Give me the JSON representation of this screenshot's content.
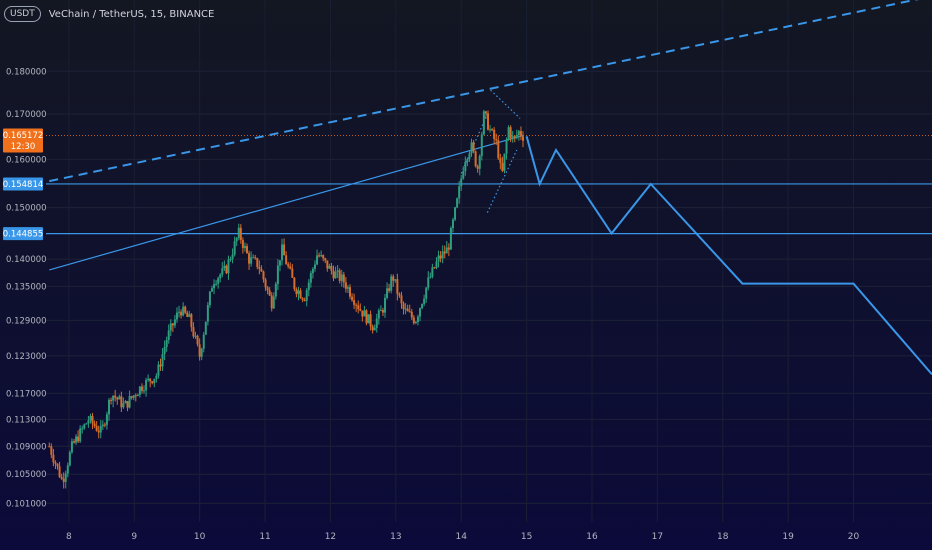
{
  "header": {
    "currency_badge": "USDT",
    "title": "VeChain / TetherUS, 15, BINANCE"
  },
  "colors": {
    "background_top": "#131722",
    "background_bottom": "#0b0a3a",
    "up_candle": "#2e9e7f",
    "down_candle": "#d86d2a",
    "drawing_blue": "#3a96e8",
    "price_tag": "#f0701b",
    "axis_text": "#b2b5be"
  },
  "price_tags": [
    {
      "price": 0.165172,
      "label": "0.165172",
      "sub": "12:30",
      "color": "#f0701b"
    },
    {
      "price": 0.154814,
      "label": "0.154814",
      "color": "#3a96e8"
    },
    {
      "price": 0.144855,
      "label": "0.144855",
      "color": "#3a96e8"
    }
  ],
  "chart_data": {
    "type": "candlestick",
    "y_scale": "log",
    "x_range": [
      7.65,
      21.2
    ],
    "y_range": [
      0.0985,
      0.198
    ],
    "x_ticks": [
      "8",
      "9",
      "10",
      "11",
      "12",
      "13",
      "14",
      "15",
      "16",
      "17",
      "18",
      "19",
      "20"
    ],
    "y_ticks": [
      "0.180000",
      "0.170000",
      "0.160000",
      "0.150000",
      "0.140000",
      "0.135000",
      "0.129000",
      "0.123000",
      "0.117000",
      "0.113000",
      "0.109000",
      "0.105000",
      "0.101000"
    ],
    "price_path": [
      [
        7.7,
        0.109
      ],
      [
        7.9,
        0.104
      ],
      [
        8.05,
        0.109
      ],
      [
        8.3,
        0.113
      ],
      [
        8.5,
        0.111
      ],
      [
        8.65,
        0.117
      ],
      [
        8.85,
        0.115
      ],
      [
        9.1,
        0.118
      ],
      [
        9.35,
        0.12
      ],
      [
        9.5,
        0.126
      ],
      [
        9.7,
        0.131
      ],
      [
        9.85,
        0.129
      ],
      [
        10.0,
        0.123
      ],
      [
        10.2,
        0.136
      ],
      [
        10.4,
        0.138
      ],
      [
        10.6,
        0.145
      ],
      [
        10.75,
        0.14
      ],
      [
        10.9,
        0.139
      ],
      [
        11.1,
        0.132
      ],
      [
        11.25,
        0.142
      ],
      [
        11.45,
        0.135
      ],
      [
        11.6,
        0.133
      ],
      [
        11.8,
        0.141
      ],
      [
        12.0,
        0.138
      ],
      [
        12.2,
        0.136
      ],
      [
        12.45,
        0.131
      ],
      [
        12.65,
        0.128
      ],
      [
        12.8,
        0.131
      ],
      [
        12.95,
        0.137
      ],
      [
        13.1,
        0.131
      ],
      [
        13.3,
        0.129
      ],
      [
        13.5,
        0.136
      ],
      [
        13.65,
        0.14
      ],
      [
        13.8,
        0.142
      ],
      [
        13.95,
        0.152
      ],
      [
        14.05,
        0.16
      ],
      [
        14.15,
        0.163
      ],
      [
        14.25,
        0.158
      ],
      [
        14.35,
        0.17
      ],
      [
        14.45,
        0.166
      ],
      [
        14.55,
        0.163
      ],
      [
        14.62,
        0.156
      ],
      [
        14.72,
        0.167
      ],
      [
        14.8,
        0.164
      ],
      [
        14.88,
        0.166
      ],
      [
        14.95,
        0.165
      ]
    ],
    "projection": [
      [
        15.0,
        0.165
      ],
      [
        15.2,
        0.1548
      ],
      [
        15.45,
        0.162
      ],
      [
        16.3,
        0.1449
      ],
      [
        16.9,
        0.1548
      ],
      [
        18.3,
        0.1355
      ],
      [
        20.0,
        0.1355
      ],
      [
        21.2,
        0.12
      ]
    ],
    "horizontal_lines": [
      0.154814,
      0.144855
    ],
    "current_price_line": 0.165172,
    "trendlines": [
      {
        "style": "dashed",
        "from": [
          7.7,
          0.1554
        ],
        "to": [
          21.2,
          0.199
        ]
      },
      {
        "style": "solid",
        "from": [
          7.7,
          0.138
        ],
        "to": [
          14.95,
          0.1652
        ]
      }
    ],
    "channel": [
      {
        "from": [
          14.45,
          0.1755
        ],
        "to": [
          14.9,
          0.169
        ]
      },
      {
        "from": [
          14.0,
          0.157
        ],
        "to": [
          14.4,
          0.17
        ]
      },
      {
        "from": [
          14.4,
          0.149
        ],
        "to": [
          14.85,
          0.162
        ]
      }
    ]
  }
}
